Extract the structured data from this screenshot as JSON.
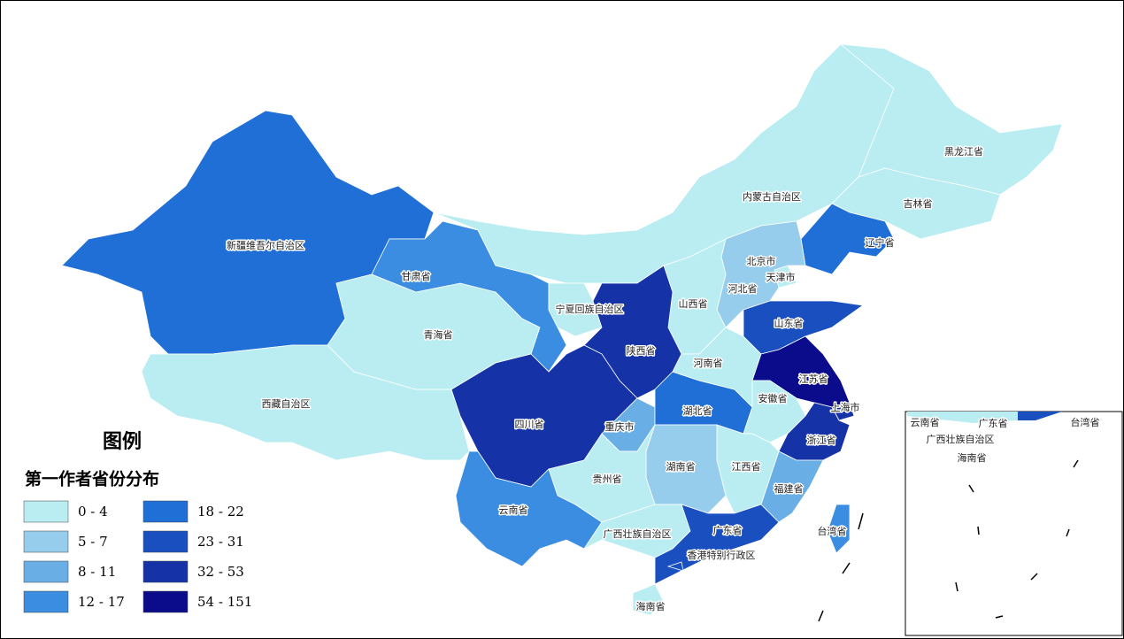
{
  "legend": {
    "title": "图例",
    "subtitle": "第一作者省份分布",
    "classes": [
      {
        "label": "0 - 4",
        "color": "#b9edf1"
      },
      {
        "label": "5 - 7",
        "color": "#97cdec"
      },
      {
        "label": "8 - 11",
        "color": "#6aaee6"
      },
      {
        "label": "12 - 17",
        "color": "#3a8de0"
      },
      {
        "label": "18 - 22",
        "color": "#1f6fd6"
      },
      {
        "label": "23 - 31",
        "color": "#1a4fc0"
      },
      {
        "label": "32 - 53",
        "color": "#1533a6"
      },
      {
        "label": "54 - 151",
        "color": "#0a0c8c"
      }
    ]
  },
  "regions": [
    {
      "label": "新疆维吾尔自治区",
      "color": "#1f6fd6"
    },
    {
      "label": "西藏自治区",
      "color": "#b9edf1"
    },
    {
      "label": "青海省",
      "color": "#b9edf1"
    },
    {
      "label": "甘肃省",
      "color": "#3a8de0"
    },
    {
      "label": "内蒙古自治区",
      "color": "#b9edf1"
    },
    {
      "label": "黑龙江省",
      "color": "#b9edf1"
    },
    {
      "label": "吉林省",
      "color": "#b9edf1"
    },
    {
      "label": "辽宁省",
      "color": "#1f6fd6"
    },
    {
      "label": "北京市",
      "color": "#0a0c8c"
    },
    {
      "label": "天津市",
      "color": "#b9edf1"
    },
    {
      "label": "河北省",
      "color": "#97cdec"
    },
    {
      "label": "山西省",
      "color": "#b9edf1"
    },
    {
      "label": "宁夏回族自治区",
      "color": "#b9edf1"
    },
    {
      "label": "陕西省",
      "color": "#1533a6"
    },
    {
      "label": "四川省",
      "color": "#1533a6"
    },
    {
      "label": "重庆市",
      "color": "#6aaee6"
    },
    {
      "label": "湖北省",
      "color": "#1f6fd6"
    },
    {
      "label": "河南省",
      "color": "#b9edf1"
    },
    {
      "label": "山东省",
      "color": "#1a4fc0"
    },
    {
      "label": "江苏省",
      "color": "#0a0c8c"
    },
    {
      "label": "上海市",
      "color": "#1533a6"
    },
    {
      "label": "安徽省",
      "color": "#b9edf1"
    },
    {
      "label": "浙江省",
      "color": "#1533a6"
    },
    {
      "label": "江西省",
      "color": "#b9edf1"
    },
    {
      "label": "湖南省",
      "color": "#97cdec"
    },
    {
      "label": "贵州省",
      "color": "#b9edf1"
    },
    {
      "label": "云南省",
      "color": "#3a8de0"
    },
    {
      "label": "广西壮族自治区",
      "color": "#b9edf1"
    },
    {
      "label": "广东省",
      "color": "#1a4fc0"
    },
    {
      "label": "福建省",
      "color": "#6aaee6"
    },
    {
      "label": "海南省",
      "color": "#b9edf1"
    },
    {
      "label": "台湾省",
      "color": "#3a8de0"
    },
    {
      "label": "香港特别行政区",
      "color": "#1a4fc0"
    }
  ],
  "inset": {
    "labels": [
      "云南省",
      "广东省",
      "台湾省",
      "广西壮族自治区",
      "海南省"
    ]
  }
}
